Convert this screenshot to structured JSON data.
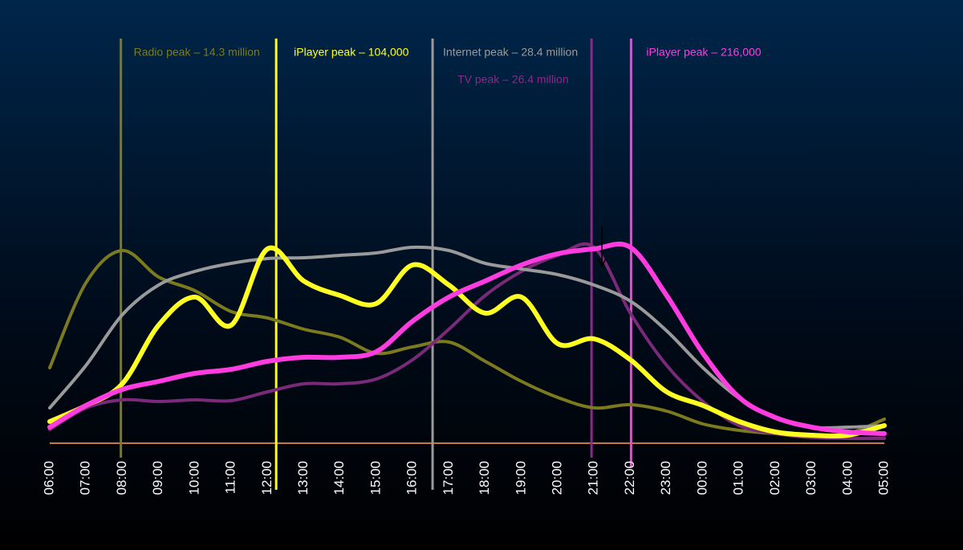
{
  "chart_data": {
    "type": "line",
    "categories": [
      "06:00",
      "07:00",
      "08:00",
      "09:00",
      "10:00",
      "11:00",
      "12:00",
      "13:00",
      "14:00",
      "15:00",
      "16:00",
      "17:00",
      "18:00",
      "19:00",
      "20:00",
      "21:00",
      "22:00",
      "23:00",
      "00:00",
      "01:00",
      "02:00",
      "03:00",
      "04:00",
      "05:00"
    ],
    "ylim": [
      0,
      100
    ],
    "baseline_color": "#c8783c",
    "series": [
      {
        "color": "#7c7a1e",
        "width": 4,
        "values": [
          18.8,
          40,
          48,
          41.4,
          38,
          32.8,
          31.2,
          28.4,
          26.4,
          22.4,
          24,
          25.2,
          20.4,
          15.4,
          11.4,
          8.8,
          9.6,
          8,
          4.8,
          3.2,
          2.4,
          2,
          2.4,
          6
        ]
      },
      {
        "color": "#7a2a78",
        "width": 4,
        "values": [
          3.4,
          8.8,
          10.8,
          10.4,
          10.8,
          10.6,
          12.8,
          14.8,
          14.8,
          16,
          20.8,
          28.4,
          36.8,
          42.8,
          46.8,
          48.8,
          32.4,
          19.4,
          10.4,
          4.4,
          2.4,
          1.4,
          1.2,
          1.2
        ]
      },
      {
        "color": "#9a9a9a",
        "width": 4,
        "values": [
          8.8,
          19.4,
          32,
          39.4,
          42.8,
          44.8,
          46,
          46.2,
          46.8,
          47.4,
          48.8,
          48,
          44.8,
          43.4,
          42,
          39.4,
          35.4,
          28,
          18.8,
          11.2,
          6.4,
          4,
          4,
          4.4
        ]
      },
      {
        "color": "#ffff22",
        "width": 6,
        "values": [
          5.4,
          9.4,
          14.8,
          29.4,
          36.4,
          29.4,
          48.4,
          40.4,
          36.8,
          34.8,
          44.4,
          39.4,
          32.4,
          36.4,
          24.8,
          26,
          20.8,
          12.8,
          9.4,
          5.4,
          2.8,
          2,
          2,
          4.4
        ]
      },
      {
        "color": "#ff3ce0",
        "width": 6,
        "values": [
          4,
          9.4,
          13.4,
          15.4,
          17.4,
          18.4,
          20.4,
          21.4,
          21.4,
          22.8,
          30.4,
          36.4,
          40.4,
          44.4,
          47.2,
          48.4,
          48.8,
          36.8,
          22.4,
          11.4,
          6.4,
          4,
          2.8,
          2.4
        ]
      }
    ],
    "annotations": [
      {
        "text": "Radio peak – 14.3 million",
        "x": 1.96,
        "color": "#7c7a1e"
      },
      {
        "text": "iPlayer peak – 104,000",
        "x": 6.24,
        "color": "#ffff22"
      },
      {
        "text": "Internet peak – 28.4 million",
        "x": 10.55,
        "color": "#9a9a9a"
      },
      {
        "text": "TV peak – 26.4 million",
        "x": 14.93,
        "color": "#8a2a88"
      },
      {
        "text": "iPlayer peak – 216,000",
        "x": 16.02,
        "color": "#ff3ce0"
      }
    ]
  }
}
